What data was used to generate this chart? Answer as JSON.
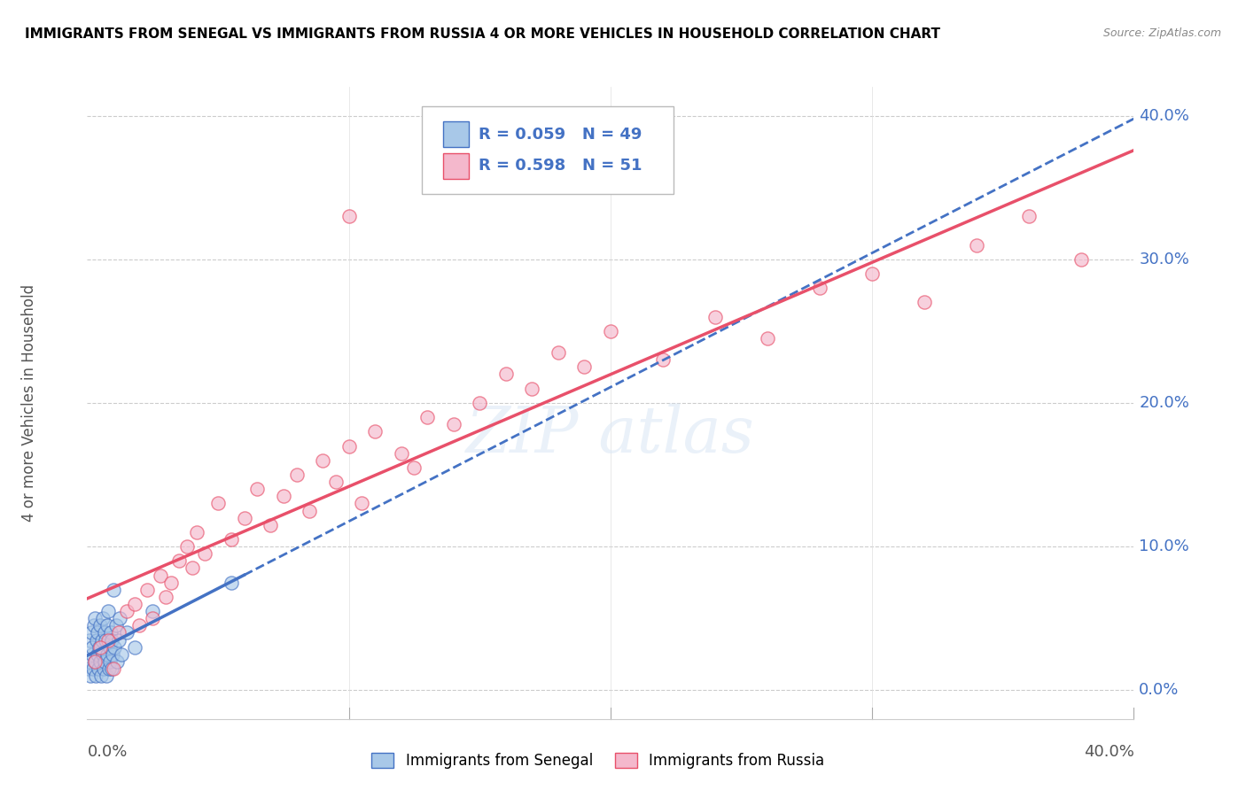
{
  "title": "IMMIGRANTS FROM SENEGAL VS IMMIGRANTS FROM RUSSIA 4 OR MORE VEHICLES IN HOUSEHOLD CORRELATION CHART",
  "source": "Source: ZipAtlas.com",
  "ylabel": "4 or more Vehicles in Household",
  "legend_label1": "Immigrants from Senegal",
  "legend_label2": "Immigrants from Russia",
  "R1": "0.059",
  "N1": "49",
  "R2": "0.598",
  "N2": "51",
  "color_senegal": "#a8c8e8",
  "color_russia": "#f4b8cc",
  "line_color_senegal": "#4472c4",
  "line_color_russia": "#e8506a",
  "xlim": [
    0,
    40
  ],
  "ylim": [
    -2,
    42
  ],
  "ytick_vals": [
    0,
    10,
    20,
    30,
    40
  ],
  "ytick_labels": [
    "0.0%",
    "10.0%",
    "20.0%",
    "30.0%",
    "40.0%"
  ],
  "watermark_text": "ZIP atlas",
  "senegal_x": [
    0.05,
    0.08,
    0.1,
    0.12,
    0.15,
    0.18,
    0.2,
    0.22,
    0.25,
    0.28,
    0.3,
    0.32,
    0.35,
    0.38,
    0.4,
    0.42,
    0.45,
    0.48,
    0.5,
    0.52,
    0.55,
    0.58,
    0.6,
    0.62,
    0.65,
    0.68,
    0.7,
    0.72,
    0.75,
    0.78,
    0.8,
    0.82,
    0.85,
    0.88,
    0.9,
    0.92,
    0.95,
    0.98,
    1.0,
    1.05,
    1.1,
    1.15,
    1.2,
    1.25,
    1.3,
    1.5,
    1.8,
    2.5,
    5.5
  ],
  "senegal_y": [
    1.5,
    2.0,
    3.5,
    1.0,
    4.0,
    2.5,
    3.0,
    1.5,
    4.5,
    2.0,
    5.0,
    1.0,
    3.5,
    2.5,
    4.0,
    1.5,
    3.0,
    2.0,
    4.5,
    1.0,
    3.5,
    2.5,
    5.0,
    1.5,
    4.0,
    2.0,
    3.5,
    1.0,
    4.5,
    2.5,
    5.5,
    1.5,
    3.0,
    2.0,
    4.0,
    1.5,
    3.5,
    2.5,
    7.0,
    3.0,
    4.5,
    2.0,
    3.5,
    5.0,
    2.5,
    4.0,
    3.0,
    5.5,
    7.5
  ],
  "russia_x": [
    0.3,
    0.8,
    1.2,
    1.5,
    1.8,
    2.0,
    2.3,
    2.5,
    2.8,
    3.0,
    3.2,
    3.5,
    3.8,
    4.0,
    4.2,
    4.5,
    5.0,
    5.5,
    6.0,
    6.5,
    7.0,
    7.5,
    8.0,
    8.5,
    9.0,
    9.5,
    10.0,
    10.5,
    11.0,
    12.0,
    12.5,
    13.0,
    14.0,
    15.0,
    16.0,
    17.0,
    18.0,
    19.0,
    20.0,
    22.0,
    24.0,
    26.0,
    28.0,
    30.0,
    32.0,
    34.0,
    36.0,
    38.0,
    10.0,
    1.0,
    0.5
  ],
  "russia_y": [
    2.0,
    3.5,
    4.0,
    5.5,
    6.0,
    4.5,
    7.0,
    5.0,
    8.0,
    6.5,
    7.5,
    9.0,
    10.0,
    8.5,
    11.0,
    9.5,
    13.0,
    10.5,
    12.0,
    14.0,
    11.5,
    13.5,
    15.0,
    12.5,
    16.0,
    14.5,
    17.0,
    13.0,
    18.0,
    16.5,
    15.5,
    19.0,
    18.5,
    20.0,
    22.0,
    21.0,
    23.5,
    22.5,
    25.0,
    23.0,
    26.0,
    24.5,
    28.0,
    29.0,
    27.0,
    31.0,
    33.0,
    30.0,
    33.0,
    1.5,
    3.0
  ]
}
